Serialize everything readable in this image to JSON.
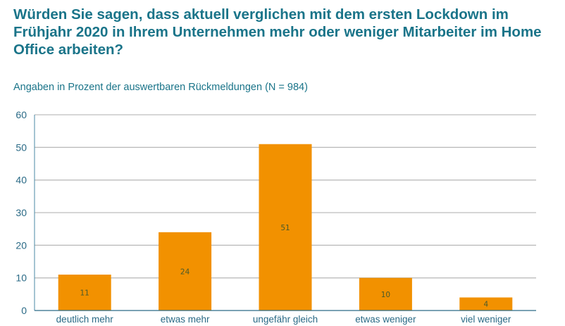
{
  "chart_data": {
    "type": "bar",
    "title": "Würden Sie sagen, dass aktuell verglichen mit dem ersten Lockdown im Frühjahr 2020 in Ihrem Unternehmen mehr oder weniger Mitarbeiter im Home Office arbeiten?",
    "subtitle": "Angaben in Prozent der auswertbaren Rückmeldungen (N = 984)",
    "categories": [
      "deutlich mehr",
      "etwas mehr",
      "ungefähr gleich",
      "etwas weniger",
      "viel weniger"
    ],
    "values": [
      11,
      24,
      51,
      10,
      4
    ],
    "xlabel": "",
    "ylabel": "",
    "ylim": [
      0,
      60
    ],
    "yticks": [
      0,
      10,
      20,
      30,
      40,
      50,
      60
    ],
    "grid": true,
    "bar_color": "#f29100",
    "text_color": "#1a7489"
  }
}
